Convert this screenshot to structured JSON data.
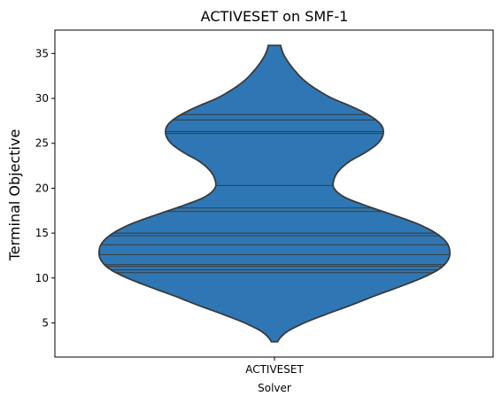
{
  "chart_data": {
    "type": "violin",
    "title": "ACTIVESET on SMF-1",
    "xlabel": "Solver",
    "ylabel": "Terminal Objective",
    "categories": [
      "ACTIVESET"
    ],
    "ylim": [
      1.2,
      37.6
    ],
    "yticks": [
      5,
      10,
      15,
      20,
      25,
      30,
      35
    ],
    "grid": false,
    "inner": "stick",
    "color": "#2f77b4",
    "edge_color": "#3a3a3a",
    "violin_range": [
      2.9,
      35.9
    ],
    "density_profile": [
      {
        "y": 2.9,
        "w": 0.018
      },
      {
        "y": 4.0,
        "w": 0.07
      },
      {
        "y": 5.0,
        "w": 0.17
      },
      {
        "y": 6.0,
        "w": 0.3
      },
      {
        "y": 7.0,
        "w": 0.44
      },
      {
        "y": 8.0,
        "w": 0.57
      },
      {
        "y": 9.0,
        "w": 0.71
      },
      {
        "y": 10.0,
        "w": 0.84
      },
      {
        "y": 11.0,
        "w": 0.94
      },
      {
        "y": 12.0,
        "w": 0.99
      },
      {
        "y": 13.0,
        "w": 1.0
      },
      {
        "y": 14.0,
        "w": 0.98
      },
      {
        "y": 15.0,
        "w": 0.92
      },
      {
        "y": 16.0,
        "w": 0.82
      },
      {
        "y": 17.0,
        "w": 0.68
      },
      {
        "y": 18.0,
        "w": 0.53
      },
      {
        "y": 19.0,
        "w": 0.4
      },
      {
        "y": 20.0,
        "w": 0.34
      },
      {
        "y": 21.0,
        "w": 0.34
      },
      {
        "y": 22.0,
        "w": 0.37
      },
      {
        "y": 23.0,
        "w": 0.43
      },
      {
        "y": 24.0,
        "w": 0.52
      },
      {
        "y": 25.0,
        "w": 0.59
      },
      {
        "y": 26.0,
        "w": 0.62
      },
      {
        "y": 27.0,
        "w": 0.61
      },
      {
        "y": 28.0,
        "w": 0.55
      },
      {
        "y": 29.0,
        "w": 0.45
      },
      {
        "y": 30.0,
        "w": 0.33
      },
      {
        "y": 31.0,
        "w": 0.24
      },
      {
        "y": 32.0,
        "w": 0.17
      },
      {
        "y": 33.0,
        "w": 0.12
      },
      {
        "y": 34.0,
        "w": 0.08
      },
      {
        "y": 35.0,
        "w": 0.05
      },
      {
        "y": 35.9,
        "w": 0.036
      }
    ],
    "observations": [
      10.6,
      10.9,
      11.3,
      11.5,
      12.6,
      13.7,
      14.7,
      15.0,
      17.4,
      17.8,
      20.3,
      26.1,
      26.3,
      27.6,
      28.2
    ]
  }
}
